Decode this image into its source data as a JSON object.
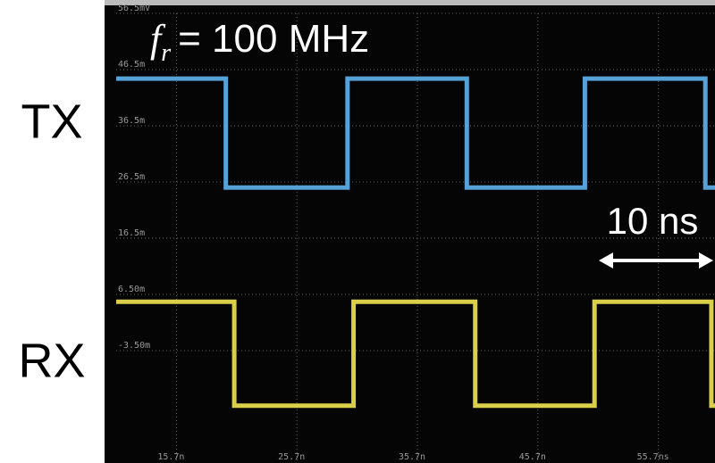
{
  "chart_data": {
    "type": "line",
    "xlim": [
      10.7,
      60.4
    ],
    "xticks": [
      {
        "value": 15.7,
        "label": "15.7n"
      },
      {
        "value": 25.7,
        "label": "25.7n"
      },
      {
        "value": 35.7,
        "label": "35.7n"
      },
      {
        "value": 45.7,
        "label": "45.7n"
      },
      {
        "value": 55.7,
        "label": "55.7ns"
      }
    ],
    "ylim": [
      -23.5,
      56.5
    ],
    "yticks": [
      {
        "value": 56.5,
        "label": "56.5mV"
      },
      {
        "value": 46.5,
        "label": "46.5m"
      },
      {
        "value": 36.5,
        "label": "36.5m"
      },
      {
        "value": 26.5,
        "label": "26.5m"
      },
      {
        "value": 16.5,
        "label": "16.5m"
      },
      {
        "value": 6.5,
        "label": "6.50m"
      },
      {
        "value": -3.5,
        "label": "-3.50m"
      }
    ],
    "grid": true,
    "series": [
      {
        "name": "TX",
        "color": "#5fb4f0",
        "x": [
          10.7,
          19.8,
          19.8,
          29.9,
          29.9,
          39.8,
          39.8,
          49.6,
          49.6,
          59.6,
          59.6,
          60.4
        ],
        "values": [
          44.9,
          44.9,
          25.5,
          25.5,
          44.9,
          44.9,
          25.5,
          25.5,
          44.9,
          44.9,
          25.5,
          25.5
        ]
      },
      {
        "name": "RX",
        "color": "#f2e650",
        "x": [
          10.7,
          20.5,
          20.5,
          30.4,
          30.4,
          40.5,
          40.5,
          50.4,
          50.4,
          60.1,
          60.1,
          60.4
        ],
        "values": [
          5.2,
          5.2,
          -13.3,
          -13.3,
          5.2,
          5.2,
          -13.3,
          -13.3,
          5.2,
          5.2,
          -13.3,
          -13.3
        ]
      }
    ],
    "annotations": {
      "symbol": "f",
      "subscript": "r",
      "frequency": "= 100 MHz",
      "scale": "10 ns"
    }
  }
}
